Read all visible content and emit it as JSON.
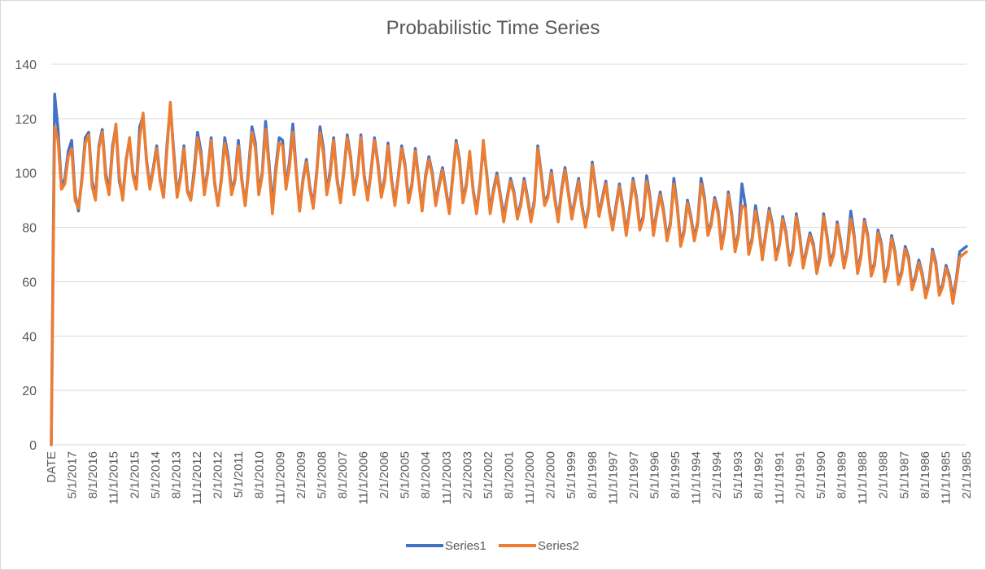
{
  "chart_data": {
    "type": "line",
    "title": "Probabilistic Time Series",
    "xlabel": "",
    "ylabel": "",
    "ylim": [
      0,
      140
    ],
    "yticks": [
      0,
      20,
      40,
      60,
      80,
      100,
      120,
      140
    ],
    "grid": "horizontal",
    "legend_position": "bottom-center",
    "x_order": "descending-dates",
    "x_tick_labels": [
      "DATE",
      "5/1/2017",
      "8/1/2016",
      "11/1/2015",
      "2/1/2015",
      "5/1/2014",
      "8/1/2013",
      "11/1/2012",
      "2/1/2012",
      "5/1/2011",
      "8/1/2010",
      "11/1/2009",
      "2/1/2009",
      "5/1/2008",
      "8/1/2007",
      "11/1/2006",
      "2/1/2006",
      "5/1/2005",
      "8/1/2004",
      "11/1/2003",
      "2/1/2003",
      "5/1/2002",
      "8/1/2001",
      "11/1/2000",
      "2/1/2000",
      "5/1/1999",
      "8/1/1998",
      "11/1/1997",
      "2/1/1997",
      "5/1/1996",
      "8/1/1995",
      "11/1/1994",
      "2/1/1994",
      "5/1/1993",
      "8/1/1992",
      "11/1/1991",
      "2/1/1991",
      "5/1/1990",
      "8/1/1989",
      "11/1/1988",
      "2/1/1988",
      "5/1/1987",
      "8/1/1986",
      "11/1/1985",
      "2/1/1985"
    ],
    "series_meta": [
      {
        "name": "Series1",
        "color": "#4472c4"
      },
      {
        "name": "Series2",
        "color": "#ed7d31"
      }
    ],
    "series": [
      {
        "name": "Series1",
        "values": [
          0,
          129,
          116,
          95,
          98,
          108,
          112,
          92,
          86,
          98,
          113,
          115,
          97,
          91,
          110,
          116,
          100,
          93,
          110,
          117,
          97,
          91,
          105,
          112,
          100,
          95,
          117,
          121,
          105,
          95,
          102,
          110,
          98,
          91,
          110,
          125,
          108,
          92,
          99,
          110,
          94,
          90,
          101,
          115,
          108,
          93,
          101,
          113,
          97,
          88,
          98,
          113,
          106,
          93,
          98,
          112,
          98,
          88,
          102,
          117,
          111,
          93,
          100,
          119,
          104,
          88,
          102,
          113,
          112,
          95,
          104,
          118,
          101,
          86,
          98,
          105,
          95,
          88,
          100,
          117,
          109,
          93,
          101,
          113,
          98,
          90,
          101,
          114,
          106,
          93,
          100,
          114,
          99,
          91,
          101,
          113,
          104,
          92,
          98,
          111,
          98,
          89,
          99,
          110,
          103,
          90,
          96,
          109,
          98,
          87,
          99,
          106,
          100,
          89,
          96,
          102,
          94,
          86,
          99,
          112,
          105,
          90,
          96,
          107,
          94,
          86,
          96,
          110,
          100,
          86,
          94,
          100,
          92,
          84,
          91,
          98,
          93,
          84,
          89,
          98,
          91,
          83,
          90,
          110,
          100,
          89,
          92,
          101,
          91,
          83,
          94,
          102,
          93,
          84,
          91,
          98,
          88,
          81,
          88,
          104,
          95,
          85,
          91,
          97,
          87,
          80,
          88,
          96,
          88,
          78,
          87,
          98,
          91,
          80,
          84,
          99,
          91,
          78,
          86,
          93,
          86,
          76,
          82,
          98,
          88,
          74,
          79,
          90,
          84,
          76,
          82,
          98,
          91,
          78,
          82,
          91,
          86,
          73,
          80,
          93,
          85,
          72,
          78,
          96,
          88,
          71,
          76,
          88,
          80,
          69,
          78,
          87,
          81,
          69,
          74,
          84,
          78,
          67,
          72,
          85,
          77,
          66,
          72,
          78,
          74,
          64,
          70,
          85,
          77,
          67,
          71,
          82,
          75,
          66,
          72,
          86,
          77,
          64,
          70,
          83,
          77,
          63,
          67,
          79,
          74,
          61,
          66,
          77,
          71,
          60,
          64,
          73,
          69,
          58,
          62,
          68,
          63,
          55,
          60,
          72,
          67,
          56,
          59,
          66,
          62,
          54,
          61,
          71,
          72,
          73
        ]
      },
      {
        "name": "Series2",
        "values": [
          0,
          117,
          112,
          94,
          96,
          106,
          109,
          90,
          87,
          97,
          111,
          114,
          95,
          90,
          109,
          115,
          98,
          92,
          108,
          118,
          99,
          90,
          104,
          113,
          99,
          94,
          113,
          122,
          104,
          94,
          101,
          109,
          97,
          91,
          108,
          126,
          106,
          91,
          98,
          109,
          93,
          90,
          99,
          113,
          106,
          92,
          100,
          112,
          96,
          88,
          97,
          111,
          104,
          92,
          97,
          110,
          97,
          88,
          100,
          115,
          109,
          92,
          99,
          116,
          102,
          85,
          100,
          111,
          110,
          94,
          102,
          115,
          100,
          86,
          97,
          104,
          94,
          87,
          99,
          115,
          107,
          92,
          99,
          112,
          97,
          89,
          100,
          113,
          105,
          92,
          99,
          113,
          98,
          90,
          100,
          112,
          103,
          91,
          97,
          110,
          97,
          88,
          98,
          109,
          102,
          89,
          95,
          108,
          97,
          86,
          98,
          105,
          99,
          88,
          95,
          101,
          93,
          85,
          98,
          111,
          104,
          89,
          95,
          108,
          93,
          85,
          95,
          112,
          99,
          85,
          93,
          99,
          91,
          82,
          90,
          97,
          92,
          83,
          88,
          97,
          90,
          82,
          89,
          109,
          99,
          88,
          91,
          100,
          90,
          82,
          93,
          101,
          92,
          83,
          90,
          97,
          87,
          80,
          87,
          103,
          94,
          84,
          90,
          96,
          86,
          79,
          87,
          95,
          87,
          77,
          86,
          97,
          90,
          79,
          83,
          97,
          90,
          77,
          85,
          92,
          85,
          75,
          81,
          96,
          87,
          73,
          78,
          89,
          83,
          75,
          81,
          96,
          90,
          77,
          81,
          90,
          85,
          72,
          79,
          92,
          84,
          71,
          77,
          88,
          87,
          70,
          75,
          86,
          79,
          68,
          77,
          86,
          80,
          68,
          73,
          83,
          77,
          66,
          71,
          84,
          76,
          65,
          71,
          77,
          73,
          63,
          69,
          84,
          76,
          66,
          70,
          81,
          74,
          65,
          71,
          83,
          76,
          63,
          69,
          82,
          76,
          62,
          66,
          78,
          73,
          60,
          65,
          76,
          70,
          59,
          63,
          72,
          68,
          57,
          61,
          67,
          62,
          54,
          59,
          71,
          66,
          55,
          58,
          65,
          61,
          52,
          60,
          69,
          70,
          71
        ]
      }
    ]
  }
}
